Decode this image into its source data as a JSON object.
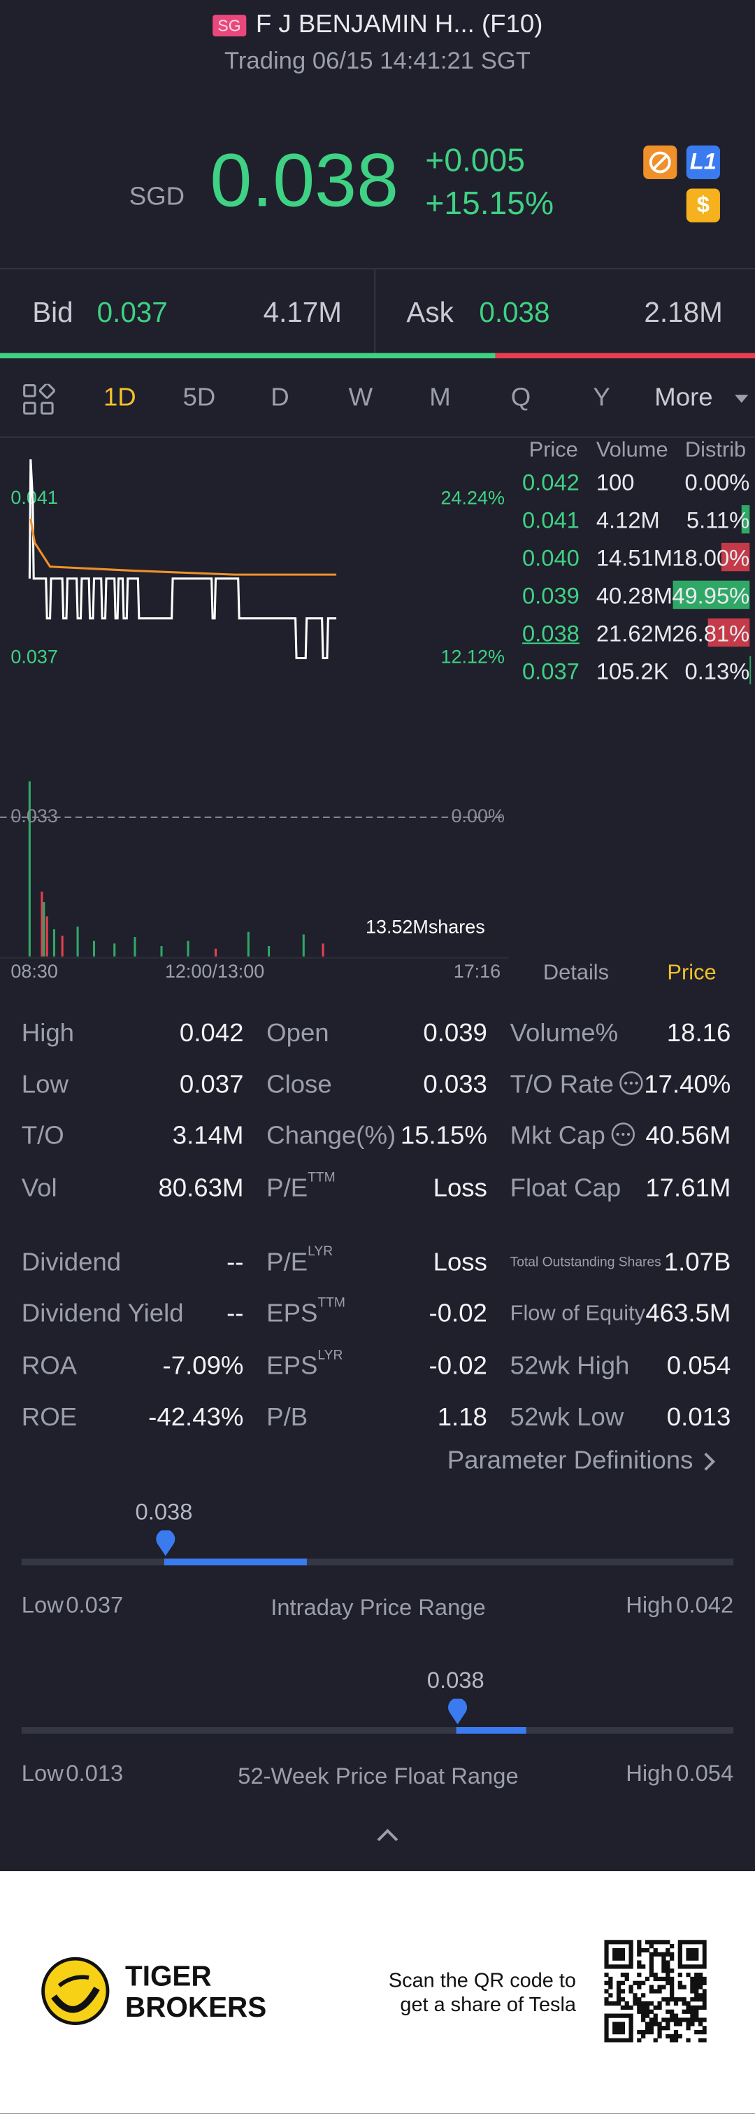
{
  "header": {
    "badge": "SG",
    "name": "F J BENJAMIN H... (F10)",
    "status": "Trading 06/15 14:41:21 SGT"
  },
  "quote": {
    "currency": "SGD",
    "price": "0.038",
    "change": "+0.005",
    "change_pct": "+15.15%",
    "level": "L1",
    "currency_icon": "$"
  },
  "bid_ask": {
    "bid_label": "Bid",
    "bid": "0.037",
    "bid_volume": "4.17M",
    "ask_label": "Ask",
    "ask": "0.038",
    "ask_volume": "2.18M"
  },
  "tabs": [
    "1D",
    "5D",
    "D",
    "W",
    "M",
    "Q",
    "Y",
    "More"
  ],
  "chart_data": {
    "type": "line",
    "xlim": [
      0,
      466
    ],
    "xticks": [
      {
        "value": 0,
        "label": "08:30"
      },
      {
        "value": 210,
        "label": "12:00/13:00"
      },
      {
        "value": 466,
        "label": "17:16"
      }
    ],
    "ylim": [
      0.0295,
      0.0422
    ],
    "yticks": [
      0.041,
      0.037,
      0.033
    ],
    "y2lim": [
      -10.61,
      27.88
    ],
    "y2ticks": [
      {
        "value": 24.24,
        "label": "24.24%"
      },
      {
        "value": 12.12,
        "label": "12.12%"
      },
      {
        "value": 0,
        "label": "0.00%"
      }
    ],
    "reference_line": 0.033,
    "series": [
      {
        "color": "#ffffff",
        "x": [
          0,
          1,
          3,
          4,
          16,
          17,
          20,
          21,
          32,
          33,
          36,
          37,
          46,
          47,
          50,
          51,
          58,
          59,
          62,
          63,
          70,
          71,
          74,
          75,
          83,
          84,
          86,
          87,
          91,
          92,
          95,
          96,
          106,
          107,
          139,
          140,
          178,
          179,
          181,
          182,
          204,
          205,
          260,
          261,
          270,
          271,
          286,
          287,
          291,
          292,
          300
        ],
        "values": [
          0.039,
          0.042,
          0.041,
          0.039,
          0.039,
          0.038,
          0.038,
          0.039,
          0.039,
          0.038,
          0.038,
          0.039,
          0.039,
          0.038,
          0.038,
          0.039,
          0.039,
          0.038,
          0.038,
          0.039,
          0.039,
          0.038,
          0.038,
          0.039,
          0.039,
          0.038,
          0.038,
          0.039,
          0.039,
          0.038,
          0.038,
          0.039,
          0.039,
          0.038,
          0.038,
          0.039,
          0.039,
          0.038,
          0.038,
          0.039,
          0.039,
          0.038,
          0.038,
          0.037,
          0.037,
          0.038,
          0.038,
          0.037,
          0.037,
          0.038,
          0.038
        ]
      },
      {
        "color": "#f0902a",
        "x": [
          1,
          5,
          20,
          100,
          200,
          300
        ],
        "values": [
          0.0405,
          0.0399,
          0.0393,
          0.0392,
          0.0391,
          0.0391
        ]
      }
    ],
    "volume": {
      "x": [
        0,
        12,
        14,
        17,
        24,
        32,
        47,
        63,
        83,
        103,
        129,
        155,
        182,
        214,
        234,
        268,
        287
      ],
      "values": [
        13.52,
        5.0,
        4.2,
        3.1,
        2.1,
        1.6,
        2.3,
        1.2,
        1.0,
        1.5,
        0.8,
        1.2,
        0.6,
        1.9,
        0.8,
        1.7,
        1.0
      ],
      "colors": [
        "#2fa866",
        "#e5404f",
        "#2fa866",
        "#e5404f",
        "#2fa866",
        "#e5404f",
        "#2fa866",
        "#2fa866",
        "#2fa866",
        "#2fa866",
        "#2fa866",
        "#2fa866",
        "#e5404f",
        "#2fa866",
        "#2fa866",
        "#2fa866",
        "#e5404f"
      ]
    },
    "volume_label": "13.52Mshares"
  },
  "chart_tabs": [
    "Details",
    "Price"
  ],
  "order_book": {
    "headers": [
      "Price",
      "Volume",
      "Distrib"
    ],
    "rows": [
      {
        "price": "0.042",
        "volume": "100",
        "distrib": 0.0,
        "distrib_label": "0.00%",
        "bar_color": "#2fa866"
      },
      {
        "price": "0.041",
        "volume": "4.12M",
        "distrib": 5.11,
        "distrib_label": "5.11%",
        "bar_color": "#2fa866"
      },
      {
        "price": "0.040",
        "volume": "14.51M",
        "distrib": 18.0,
        "distrib_label": "18.00%",
        "bar_color": "#c43a48"
      },
      {
        "price": "0.039",
        "volume": "40.28M",
        "distrib": 49.95,
        "distrib_label": "49.95%",
        "bar_color": "#2fa866"
      },
      {
        "price": "0.038",
        "volume": "21.62M",
        "distrib": 26.81,
        "distrib_label": "26.81%",
        "bar_color": "#c43a48"
      },
      {
        "price": "0.037",
        "volume": "105.2K",
        "distrib": 0.13,
        "distrib_label": "0.13%",
        "bar_color": "#2fa866"
      }
    ]
  },
  "stats": [
    [
      {
        "label": "High",
        "value": "0.042"
      },
      {
        "label": "Open",
        "value": "0.039"
      },
      {
        "label": "Volume%",
        "value": "18.16"
      }
    ],
    [
      {
        "label": "Low",
        "value": "0.037"
      },
      {
        "label": "Close",
        "value": "0.033"
      },
      {
        "label": "T/O Rate",
        "value": "17.40%",
        "info": true
      }
    ],
    [
      {
        "label": "T/O",
        "value": "3.14M"
      },
      {
        "label": "Change(%)",
        "value": "15.15%"
      },
      {
        "label": "Mkt Cap",
        "value": "40.56M",
        "info": true
      }
    ],
    [
      {
        "label": "Vol",
        "value": "80.63M"
      },
      {
        "label": "P/E",
        "sup": "TTM",
        "value": "Loss"
      },
      {
        "label": "Float Cap",
        "value": "17.61M"
      }
    ],
    [
      {
        "label": "Dividend",
        "value": "--"
      },
      {
        "label": "P/E",
        "sup": "LYR",
        "value": "Loss"
      },
      {
        "label": "Total Outstanding Shares",
        "value": "1.07B"
      }
    ],
    [
      {
        "label": "Dividend Yield",
        "value": "--"
      },
      {
        "label": "EPS",
        "sup": "TTM",
        "value": "-0.02"
      },
      {
        "label": "Flow of Equity",
        "value": "463.5M"
      }
    ],
    [
      {
        "label": "ROA",
        "value": "-7.09%"
      },
      {
        "label": "EPS",
        "sup": "LYR",
        "value": "-0.02"
      },
      {
        "label": "52wk High",
        "value": "0.054"
      }
    ],
    [
      {
        "label": "ROE",
        "value": "-42.43%"
      },
      {
        "label": "P/B",
        "value": "1.18"
      },
      {
        "label": "52wk Low",
        "value": "0.013"
      }
    ]
  ],
  "parameter_link": "Parameter Definitions",
  "ranges": [
    {
      "title": "Intraday Price Range",
      "low_label": "Low",
      "high_label": "High",
      "low": 0.037,
      "high": 0.042,
      "current": 0.038
    },
    {
      "title": "52-Week Price Float Range",
      "low_label": "Low",
      "high_label": "High",
      "low": 0.013,
      "high": 0.054,
      "current": 0.038
    }
  ],
  "footer": {
    "brand": [
      "TIGER",
      "BROKERS"
    ],
    "promo": [
      "Scan the QR code to",
      "get a share of Tesla"
    ]
  }
}
